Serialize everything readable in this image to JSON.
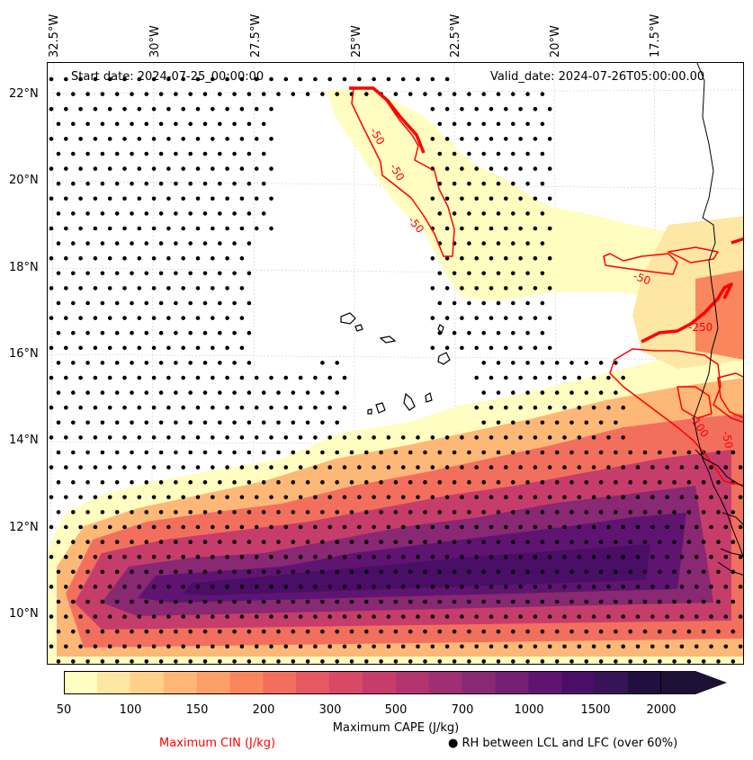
{
  "map": {
    "start_date": "Start date: 2024-07-25_00:00:00",
    "valid_date": "Valid_date: 2024-07-26T05:00:00.00",
    "lon_labels": [
      "32.5°W",
      "30°W",
      "27.5°W",
      "25°W",
      "22.5°W",
      "20°W",
      "17.5°W"
    ],
    "lat_labels": [
      "22°N",
      "20°N",
      "18°N",
      "16°N",
      "14°N",
      "12°N",
      "10°N"
    ],
    "cin_contour_labels": [
      "-50",
      "-50",
      "-50",
      "-50",
      "-250",
      "-100",
      "-50"
    ],
    "cin_color": "#ff0000",
    "colorbar": {
      "ticks": [
        "50",
        "100",
        "150",
        "200",
        "300",
        "500",
        "700",
        "1000",
        "1500",
        "2000"
      ],
      "colors": [
        "#fffdc0",
        "#fee6a4",
        "#fed08a",
        "#fdb877",
        "#fca068",
        "#fa865e",
        "#f26f5d",
        "#e65862",
        "#d74966",
        "#c63d6b",
        "#b2356f",
        "#9d2f72",
        "#892873",
        "#741f74",
        "#601471",
        "#4a0e67",
        "#361457",
        "#21103f"
      ],
      "extend_color": "#1d1035"
    },
    "cape_label": "Maximum CAPE (J/kg)",
    "cin_label": "Maximum CIN (J/kg)",
    "rh_label": "● RH between LCL and LFC (over 60%)"
  }
}
